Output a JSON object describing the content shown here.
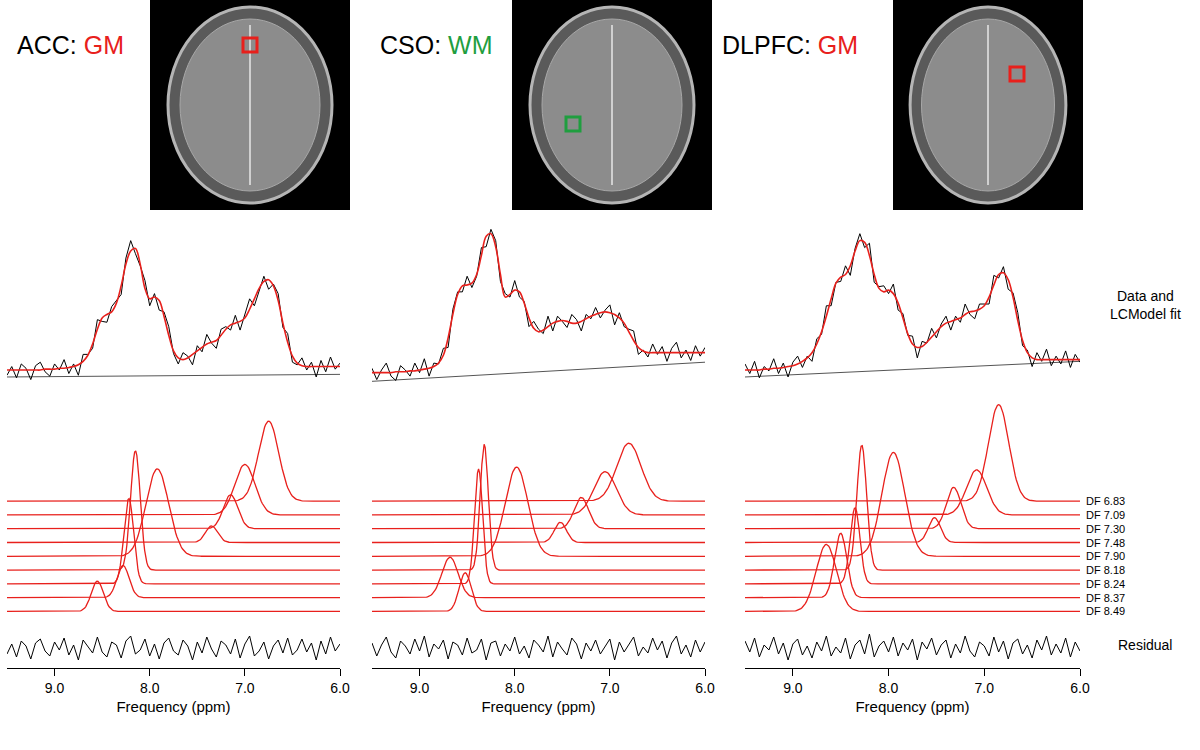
{
  "chart_data": {
    "type": "line",
    "x_label": "Frequency (ppm)",
    "xlim": [
      9.5,
      6.0
    ],
    "xticks": [
      {
        "value": 9,
        "label": "9.0"
      },
      {
        "value": 8,
        "label": "8.0"
      },
      {
        "value": 7,
        "label": "7.0"
      },
      {
        "value": 6,
        "label": "6.0"
      }
    ],
    "tick_labels": "x",
    "row_labels": {
      "fit": [
        "Data and",
        "LCModel fit"
      ],
      "residual": "Residual"
    },
    "data_color": "#000000",
    "fit_color": "#e8201c",
    "baseline_color": "#555555",
    "fit_panel": {
      "ylim": [
        -15,
        175
      ]
    },
    "component_panel": {
      "ylim": [
        -18,
        230
      ]
    },
    "residual_panel": {
      "ylim": [
        -20,
        20
      ]
    },
    "component_labels": [
      "DF 6.83",
      "DF 7.09",
      "DF 7.30",
      "DF 7.48",
      "DF 7.90",
      "DF 8.18",
      "DF 8.24",
      "DF 8.37",
      "DF 8.49"
    ],
    "x": [
      9.5,
      9.45,
      9.4,
      9.35,
      9.3,
      9.25,
      9.2,
      9.15,
      9.1,
      9.05,
      9.0,
      8.95,
      8.9,
      8.85,
      8.8,
      8.75,
      8.7,
      8.65,
      8.6,
      8.55,
      8.5,
      8.45,
      8.4,
      8.35,
      8.3,
      8.25,
      8.2,
      8.15,
      8.1,
      8.05,
      8.0,
      7.95,
      7.9,
      7.85,
      7.8,
      7.75,
      7.7,
      7.65,
      7.6,
      7.55,
      7.5,
      7.45,
      7.4,
      7.35,
      7.3,
      7.25,
      7.2,
      7.15,
      7.1,
      7.05,
      7.0,
      6.95,
      6.9,
      6.85,
      6.8,
      6.75,
      6.7,
      6.65,
      6.6,
      6.55,
      6.5,
      6.45,
      6.4,
      6.35,
      6.3,
      6.25,
      6.2,
      6.15,
      6.1,
      6.05,
      6.0
    ],
    "panels": [
      {
        "region": "ACC:",
        "tissue": "GM",
        "color": "#e8201c",
        "baseline": [
          0,
          3
        ],
        "data": [
          2,
          12,
          -1,
          15,
          10,
          -3,
          13,
          17,
          6,
          1,
          15,
          8,
          20,
          4,
          15,
          2,
          26,
          26,
          33,
          66,
          64,
          63,
          81,
          88,
          95,
          137,
          157,
          142,
          128,
          111,
          82,
          96,
          77,
          75,
          58,
          27,
          15,
          28,
          24,
          14,
          36,
          29,
          49,
          39,
          33,
          55,
          58,
          54,
          71,
          54,
          72,
          90,
          82,
          99,
          116,
          101,
          107,
          96,
          57,
          50,
          17,
          14,
          22,
          8,
          17,
          0,
          19,
          6,
          23,
          9,
          16
        ],
        "fit": [
          8,
          8,
          8,
          8,
          8,
          8,
          8,
          8,
          9,
          9,
          9,
          10,
          10,
          11,
          12,
          14,
          18,
          25,
          38,
          55,
          68,
          72,
          75,
          85,
          105,
          130,
          145,
          148,
          130,
          102,
          90,
          92,
          88,
          70,
          48,
          30,
          22,
          20,
          22,
          26,
          30,
          34,
          38,
          40,
          42,
          48,
          55,
          60,
          62,
          64,
          68,
          78,
          90,
          102,
          110,
          112,
          105,
          88,
          62,
          40,
          24,
          16,
          13,
          12,
          12,
          12,
          12,
          12,
          12,
          12,
          12
        ],
        "residual": [
          -6,
          4,
          -9,
          7,
          2,
          -11,
          5,
          9,
          -3,
          -8,
          6,
          -2,
          10,
          -7,
          3,
          -12,
          8,
          1,
          -5,
          11,
          -4,
          -9,
          6,
          3,
          -10,
          7,
          12,
          -6,
          -2,
          9,
          -8,
          4,
          -11,
          5,
          10,
          -3,
          -7,
          8,
          2,
          -12,
          6,
          -5,
          11,
          -1,
          -9,
          7,
          3,
          -6,
          9,
          -10,
          4,
          12,
          -8,
          -3,
          6,
          -11,
          2,
          8,
          -5,
          10,
          -7,
          -2,
          9,
          -4,
          5,
          -12,
          7,
          -6,
          11,
          -3,
          4
        ],
        "components": {
          "center": [
            6.75,
            7.0,
            7.15,
            7.35,
            7.92,
            8.15,
            8.22,
            8.28,
            8.55
          ],
          "height": [
            87,
            55,
            37,
            18,
            95,
            130,
            93,
            35,
            33
          ],
          "fwhm": [
            0.25,
            0.25,
            0.18,
            0.15,
            0.28,
            0.12,
            0.12,
            0.15,
            0.15
          ]
        }
      },
      {
        "region": "CSO:",
        "tissue": "WM",
        "color": "#1f9e3f",
        "baseline": [
          -5,
          17
        ],
        "data": [
          10,
          -3,
          8,
          16,
          1,
          -4,
          13,
          8,
          1,
          16,
          5,
          21,
          1,
          16,
          15,
          33,
          34,
          78,
          98,
          98,
          116,
          103,
          116,
          149,
          150,
          170,
          157,
          110,
          96,
          92,
          111,
          92,
          87,
          58,
          64,
          55,
          50,
          70,
          53,
          70,
          64,
          57,
          72,
          66,
          53,
          72,
          67,
          80,
          68,
          77,
          83,
          60,
          74,
          58,
          55,
          53,
          26,
          31,
          23,
          38,
          26,
          35,
          18,
          33,
          40,
          22,
          31,
          19,
          36,
          24,
          34
        ],
        "fit": [
          5,
          5,
          5,
          5,
          5,
          6,
          6,
          6,
          7,
          7,
          8,
          9,
          10,
          12,
          16,
          25,
          45,
          72,
          95,
          105,
          106,
          108,
          118,
          140,
          162,
          165,
          150,
          118,
          92,
          95,
          100,
          98,
          85,
          68,
          56,
          52,
          54,
          58,
          62,
          64,
          65,
          64,
          62,
          62,
          64,
          67,
          70,
          72,
          74,
          75,
          74,
          72,
          68,
          62,
          52,
          42,
          34,
          30,
          28,
          28,
          28,
          28,
          28,
          28,
          28,
          28,
          28,
          28,
          28,
          28,
          28
        ],
        "residual": [
          5,
          -8,
          3,
          11,
          -4,
          -10,
          7,
          2,
          -6,
          9,
          -3,
          12,
          -9,
          4,
          -1,
          8,
          -11,
          6,
          3,
          -7,
          10,
          -5,
          -2,
          9,
          -12,
          5,
          7,
          -8,
          4,
          -3,
          11,
          -6,
          2,
          -10,
          8,
          3,
          -4,
          12,
          -9,
          6,
          -1,
          -7,
          10,
          4,
          -11,
          5,
          -3,
          8,
          -6,
          2,
          9,
          -12,
          6,
          -4,
          3,
          11,
          -8,
          1,
          -5,
          10,
          -2,
          7,
          -10,
          5,
          12,
          -6,
          3,
          -9,
          8,
          -4,
          6
        ],
        "components": {
          "center": [
            6.8,
            7.05,
            7.3,
            7.52,
            7.98,
            8.32,
            8.38,
            8.68,
            8.52
          ],
          "height": [
            63,
            47,
            34,
            22,
            97,
            137,
            125,
            44,
            42
          ],
          "fwhm": [
            0.3,
            0.28,
            0.18,
            0.15,
            0.28,
            0.1,
            0.1,
            0.2,
            0.15
          ]
        }
      },
      {
        "region": "DLPFC:",
        "tissue": "GM",
        "color": "#e8201c",
        "baseline": [
          0,
          18
        ],
        "data": [
          15,
          4,
          18,
          -1,
          12,
          7,
          21,
          4,
          16,
          0,
          17,
          24,
          11,
          24,
          18,
          44,
          49,
          82,
          82,
          109,
          110,
          128,
          117,
          148,
          165,
          149,
          154,
          109,
          104,
          105,
          96,
          107,
          77,
          73,
          48,
          47,
          22,
          41,
          39,
          56,
          45,
          61,
          70,
          54,
          70,
          63,
          84,
          72,
          67,
          84,
          84,
          84,
          117,
          114,
          127,
          101,
          97,
          74,
          36,
          31,
          12,
          28,
          18,
          32,
          13,
          24,
          15,
          30,
          11,
          26,
          17
        ],
        "fit": [
          8,
          8,
          8,
          8,
          9,
          9,
          10,
          10,
          11,
          12,
          13,
          15,
          18,
          22,
          28,
          38,
          52,
          70,
          90,
          108,
          115,
          118,
          128,
          145,
          157,
          155,
          140,
          118,
          102,
          98,
          100,
          96,
          85,
          68,
          50,
          38,
          34,
          35,
          40,
          46,
          52,
          58,
          62,
          64,
          66,
          68,
          72,
          75,
          76,
          78,
          82,
          92,
          106,
          118,
          120,
          112,
          92,
          65,
          42,
          28,
          22,
          20,
          20,
          20,
          20,
          20,
          20,
          20,
          20,
          20,
          20
        ],
        "residual": [
          7,
          -4,
          10,
          -9,
          3,
          -2,
          11,
          -6,
          5,
          -12,
          4,
          9,
          -7,
          2,
          -10,
          6,
          -3,
          12,
          -8,
          1,
          -5,
          10,
          -11,
          3,
          8,
          -6,
          14,
          -9,
          2,
          7,
          -4,
          11,
          -8,
          5,
          -2,
          9,
          -12,
          6,
          -1,
          10,
          -7,
          3,
          8,
          -10,
          4,
          -5,
          12,
          -3,
          -9,
          6,
          2,
          -8,
          11,
          -4,
          7,
          -11,
          5,
          9,
          -6,
          3,
          -10,
          8,
          -2,
          12,
          -7,
          4,
          -5,
          10,
          -9,
          6,
          -3
        ],
        "components": {
          "center": [
            6.85,
            7.08,
            7.32,
            7.52,
            7.95,
            8.28,
            8.35,
            8.5,
            8.65
          ],
          "height": [
            105,
            49,
            45,
            27,
            113,
            136,
            83,
            70,
            73
          ],
          "fwhm": [
            0.25,
            0.25,
            0.18,
            0.15,
            0.28,
            0.12,
            0.12,
            0.15,
            0.25
          ]
        }
      }
    ]
  }
}
